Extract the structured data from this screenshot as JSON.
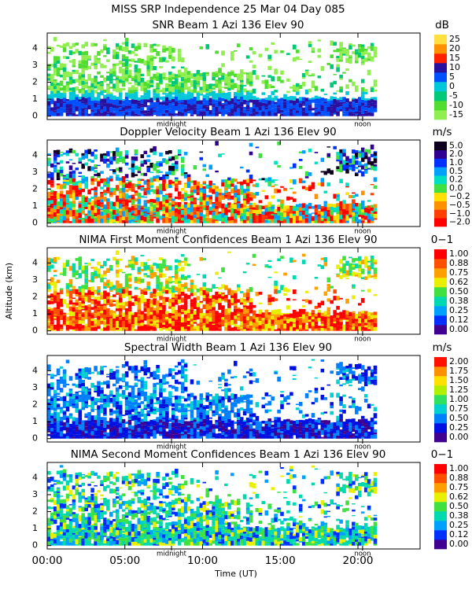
{
  "title": "MISS SRP Independence  25 Mar 04 Day 085",
  "chart_data": [
    {
      "type": "heatmap",
      "title": "SNR Beam 1 Azi 136 Elev 90",
      "unit": "dB",
      "xlim": [
        0,
        24
      ],
      "xticks": [
        {
          "value": 0,
          "label": "00:00"
        },
        {
          "value": 5,
          "label": "05:00"
        },
        {
          "value": 10,
          "label": "10:00"
        },
        {
          "value": 15,
          "label": "15:00"
        },
        {
          "value": 20,
          "label": "20:00"
        }
      ],
      "ylim": [
        -0.2,
        4.9
      ],
      "yticks": [
        0,
        1,
        2,
        3,
        4
      ],
      "annotations": [
        {
          "text": "midnight",
          "x": 8.0
        },
        {
          "text": "noon",
          "x": 20.3
        }
      ],
      "colorbar": {
        "ticks": [
          -15,
          -10,
          -5,
          0,
          5,
          10,
          15,
          20,
          25
        ],
        "colors": [
          "#90ee50",
          "#50dc30",
          "#00c878",
          "#00c8d8",
          "#0050ff",
          "#2a10a0",
          "#ff2000",
          "#ff9000",
          "#ffe040"
        ]
      }
    },
    {
      "type": "heatmap",
      "title": "Doppler Velocity Beam 1 Azi 136 Elev 90",
      "unit": "m/s",
      "xlim": [
        0,
        24
      ],
      "xticks": [
        {
          "value": 0,
          "label": "00:00"
        },
        {
          "value": 5,
          "label": "05:00"
        },
        {
          "value": 10,
          "label": "10:00"
        },
        {
          "value": 15,
          "label": "15:00"
        },
        {
          "value": 20,
          "label": "20:00"
        }
      ],
      "ylim": [
        -0.2,
        4.9
      ],
      "yticks": [
        0,
        1,
        2,
        3,
        4
      ],
      "annotations": [
        {
          "text": "midnight",
          "x": 8.0
        },
        {
          "text": "noon",
          "x": 20.3
        }
      ],
      "colorbar": {
        "ticks": [
          {
            "value": -2,
            "label": "−2.0"
          },
          {
            "value": -1,
            "label": "−1.0"
          },
          {
            "value": -0.5,
            "label": "−0.5"
          },
          {
            "value": -0.2,
            "label": "−0.2"
          },
          {
            "value": 0,
            "label": "0.0"
          },
          {
            "value": 0.2,
            "label": "0.2"
          },
          {
            "value": 0.5,
            "label": "0.5"
          },
          {
            "value": 1,
            "label": "1.0"
          },
          {
            "value": 2,
            "label": "2.0"
          },
          {
            "value": 5,
            "label": "5.0"
          }
        ],
        "colors": [
          "#ff0000",
          "#ff4000",
          "#ff9000",
          "#ffe000",
          "#40e040",
          "#00e0c0",
          "#00a0ff",
          "#0030ff",
          "#300090",
          "#100020"
        ]
      }
    },
    {
      "type": "heatmap",
      "title": "NIMA First Moment Confidences Beam 1 Azi 136 Elev 90",
      "unit": "0−1",
      "ylabel": "Altitude (km)",
      "xlim": [
        0,
        24
      ],
      "xticks": [
        {
          "value": 0,
          "label": "00:00"
        },
        {
          "value": 5,
          "label": "05:00"
        },
        {
          "value": 10,
          "label": "10:00"
        },
        {
          "value": 15,
          "label": "15:00"
        },
        {
          "value": 20,
          "label": "20:00"
        }
      ],
      "ylim": [
        -0.2,
        4.9
      ],
      "yticks": [
        0,
        1,
        2,
        3,
        4
      ],
      "annotations": [
        {
          "text": "midnight",
          "x": 8.0
        },
        {
          "text": "noon",
          "x": 20.3
        }
      ],
      "colorbar": {
        "ticks": [
          {
            "value": 0,
            "label": "0.00"
          },
          0.12,
          0.25,
          {
            "value": 0.38,
            "label": "0.38"
          },
          {
            "value": 0.5,
            "label": "0.50"
          },
          0.62,
          0.75,
          0.88,
          {
            "value": 1,
            "label": "1.00"
          }
        ],
        "colors": [
          "#400090",
          "#0030ff",
          "#00a0ff",
          "#00d8b0",
          "#40e040",
          "#e8f000",
          "#ffa000",
          "#ff5000",
          "#ff0000"
        ]
      }
    },
    {
      "type": "heatmap",
      "title": "Spectral Width Beam 1 Azi 136 Elev 90",
      "unit": "m/s",
      "xlim": [
        0,
        24
      ],
      "xticks": [
        {
          "value": 0,
          "label": "00:00"
        },
        {
          "value": 5,
          "label": "05:00"
        },
        {
          "value": 10,
          "label": "10:00"
        },
        {
          "value": 15,
          "label": "15:00"
        },
        {
          "value": 20,
          "label": "20:00"
        }
      ],
      "ylim": [
        -0.2,
        4.9
      ],
      "yticks": [
        0,
        1,
        2,
        3,
        4
      ],
      "annotations": [
        {
          "text": "midnight",
          "x": 8.0
        },
        {
          "text": "noon",
          "x": 20.3
        }
      ],
      "colorbar": {
        "ticks": [
          {
            "value": 0,
            "label": "0.00"
          },
          0.25,
          {
            "value": 0.5,
            "label": "0.50"
          },
          0.75,
          {
            "value": 1,
            "label": "1.00"
          },
          1.25,
          {
            "value": 1.5,
            "label": "1.50"
          },
          1.75,
          {
            "value": 2,
            "label": "2.00"
          }
        ],
        "colors": [
          "#400090",
          "#0010e0",
          "#0080ff",
          "#00d0d0",
          "#30e060",
          "#b0f000",
          "#ffe000",
          "#ff9000",
          "#ff1000"
        ]
      }
    },
    {
      "type": "heatmap",
      "title": "NIMA Second Moment Confidences Beam 1 Azi 136 Elev 90",
      "unit": "0−1",
      "xlabel": "Time (UT)",
      "xlim": [
        0,
        24
      ],
      "xticks": [
        {
          "value": 0,
          "label": "00:00"
        },
        {
          "value": 5,
          "label": "05:00"
        },
        {
          "value": 10,
          "label": "10:00"
        },
        {
          "value": 15,
          "label": "15:00"
        },
        {
          "value": 20,
          "label": "20:00"
        }
      ],
      "ylim": [
        -0.2,
        4.9
      ],
      "yticks": [
        0,
        1,
        2,
        3,
        4
      ],
      "annotations": [
        {
          "text": "midnight",
          "x": 8.0
        },
        {
          "text": "noon",
          "x": 20.3
        }
      ],
      "colorbar": {
        "ticks": [
          {
            "value": 0,
            "label": "0.00"
          },
          0.12,
          0.25,
          {
            "value": 0.38,
            "label": "0.38"
          },
          {
            "value": 0.5,
            "label": "0.50"
          },
          0.62,
          0.75,
          0.88,
          {
            "value": 1,
            "label": "1.00"
          }
        ],
        "colors": [
          "#400090",
          "#0030ff",
          "#00a0ff",
          "#00d8b0",
          "#40e040",
          "#e8f000",
          "#ffa000",
          "#ff5000",
          "#ff0000"
        ]
      }
    }
  ]
}
